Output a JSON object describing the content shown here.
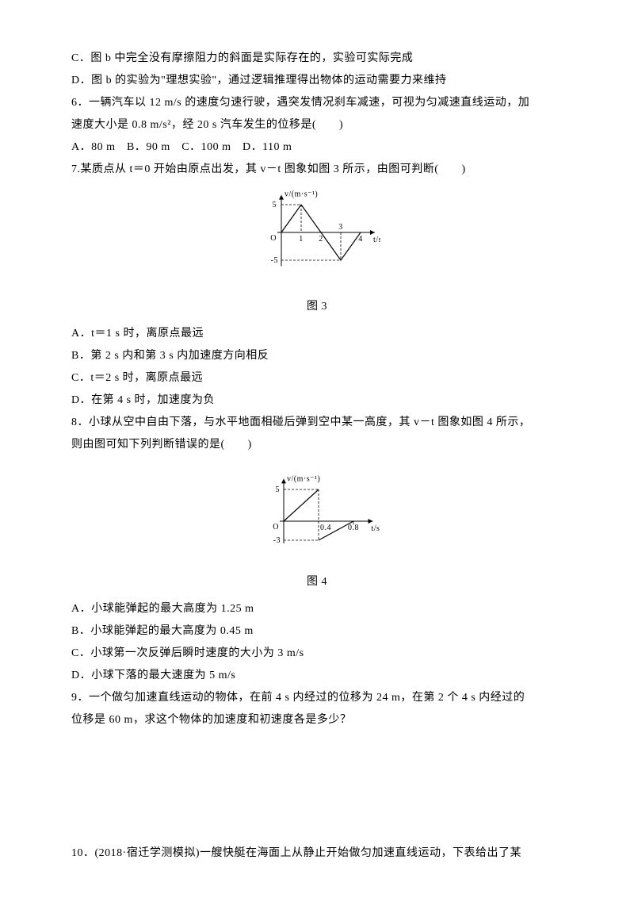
{
  "page": {
    "background_color": "#ffffff",
    "text_color": "#000000",
    "font_family": "SimSun",
    "font_size_pt": 10.5,
    "line_height": 2.0
  },
  "q5": {
    "optC": "C．图 b 中完全没有摩擦阻力的斜面是实际存在的，实验可实际完成",
    "optD": "D．图 b 的实验为\"理想实验\"，通过逻辑推理得出物体的运动需要力来维持"
  },
  "q6": {
    "stem1": "6．一辆汽车以 12 m/s 的速度匀速行驶，遇突发情况刹车减速，可视为匀减速直线运动，加",
    "stem2": "速度大小是 0.8 m/s²，经 20 s 汽车发生的位移是(　　)",
    "opts": "A．80 m　B．90 m　C．100 m　D．110 m"
  },
  "q7": {
    "stem": "7.某质点从 t＝0 开始由原点出发，其 v－t 图象如图 3 所示，由图可判断(　　)",
    "fig_caption": "图 3",
    "optA": "A．t＝1 s 时，离原点最远",
    "optB": "B．第 2 s 内和第 3 s 内加速度方向相反",
    "optC": "C．t＝2 s 时，离原点最远",
    "optD": "D．在第 4 s 时，加速度为负"
  },
  "q8": {
    "stem1": "8．小球从空中自由下落，与水平地面相碰后弹到空中某一高度，其 v－t 图象如图 4 所示，",
    "stem2": "则由图可知下列判断错误的是(　　)",
    "fig_caption": "图 4",
    "optA": "A．小球能弹起的最大高度为 1.25 m",
    "optB": "B．小球能弹起的最大高度为 0.45 m",
    "optC": "C．小球第一次反弹后瞬时速度的大小为 3 m/s",
    "optD": "D．小球下落的最大速度为 5 m/s"
  },
  "q9": {
    "stem1": "9．一个做匀加速直线运动的物体，在前 4 s 内经过的位移为 24 m，在第 2 个 4 s 内经过的",
    "stem2": "位移是 60 m，求这个物体的加速度和初速度各是多少？"
  },
  "q10": {
    "stem": "10．(2018·宿迁学测模拟)一艘快艇在海面上从静止开始做匀加速直线运动，下表给出了某"
  },
  "fig3": {
    "type": "line",
    "x_label_ticks": [
      "1",
      "2",
      "3",
      "4"
    ],
    "x_axis_label": "t/s",
    "y_label_ticks_pos": "5",
    "y_label_ticks_neg": "-5",
    "y_axis_label": "v/(m·s⁻¹)",
    "origin_label": "O",
    "line_color": "#000000",
    "axis_color": "#000000",
    "dash_color": "#000000",
    "segments": [
      {
        "from_t": 0,
        "from_v": 0,
        "to_t": 1,
        "to_v": 5
      },
      {
        "from_t": 1,
        "from_v": 5,
        "to_t": 2,
        "to_v": 0
      },
      {
        "from_t": 2,
        "from_v": 0,
        "to_t": 3,
        "to_v": -5
      },
      {
        "from_t": 3,
        "from_v": -5,
        "to_t": 4,
        "to_v": 0
      }
    ],
    "xlim": [
      0,
      4.4
    ],
    "ylim": [
      -5.5,
      6.5
    ],
    "line_width": 1.2
  },
  "fig4": {
    "type": "line",
    "x_label_ticks": [
      "0.4",
      "0.8"
    ],
    "x_axis_label": "t/s",
    "y_label_ticks_pos": "5",
    "y_label_ticks_neg": "-3",
    "y_axis_label": "v/(m·s⁻¹)",
    "origin_label": "O",
    "line_color": "#000000",
    "axis_color": "#000000",
    "dash_color": "#000000",
    "segments": [
      {
        "from_t": 0,
        "from_v": 0,
        "to_t": 0.4,
        "to_v": 5
      },
      {
        "from_t": 0.4,
        "from_v": -3,
        "to_t": 0.8,
        "to_v": 0
      }
    ],
    "vertical_dash_at": 0.4,
    "xlim": [
      0,
      0.95
    ],
    "ylim": [
      -3.5,
      6.5
    ],
    "line_width": 1.2
  }
}
